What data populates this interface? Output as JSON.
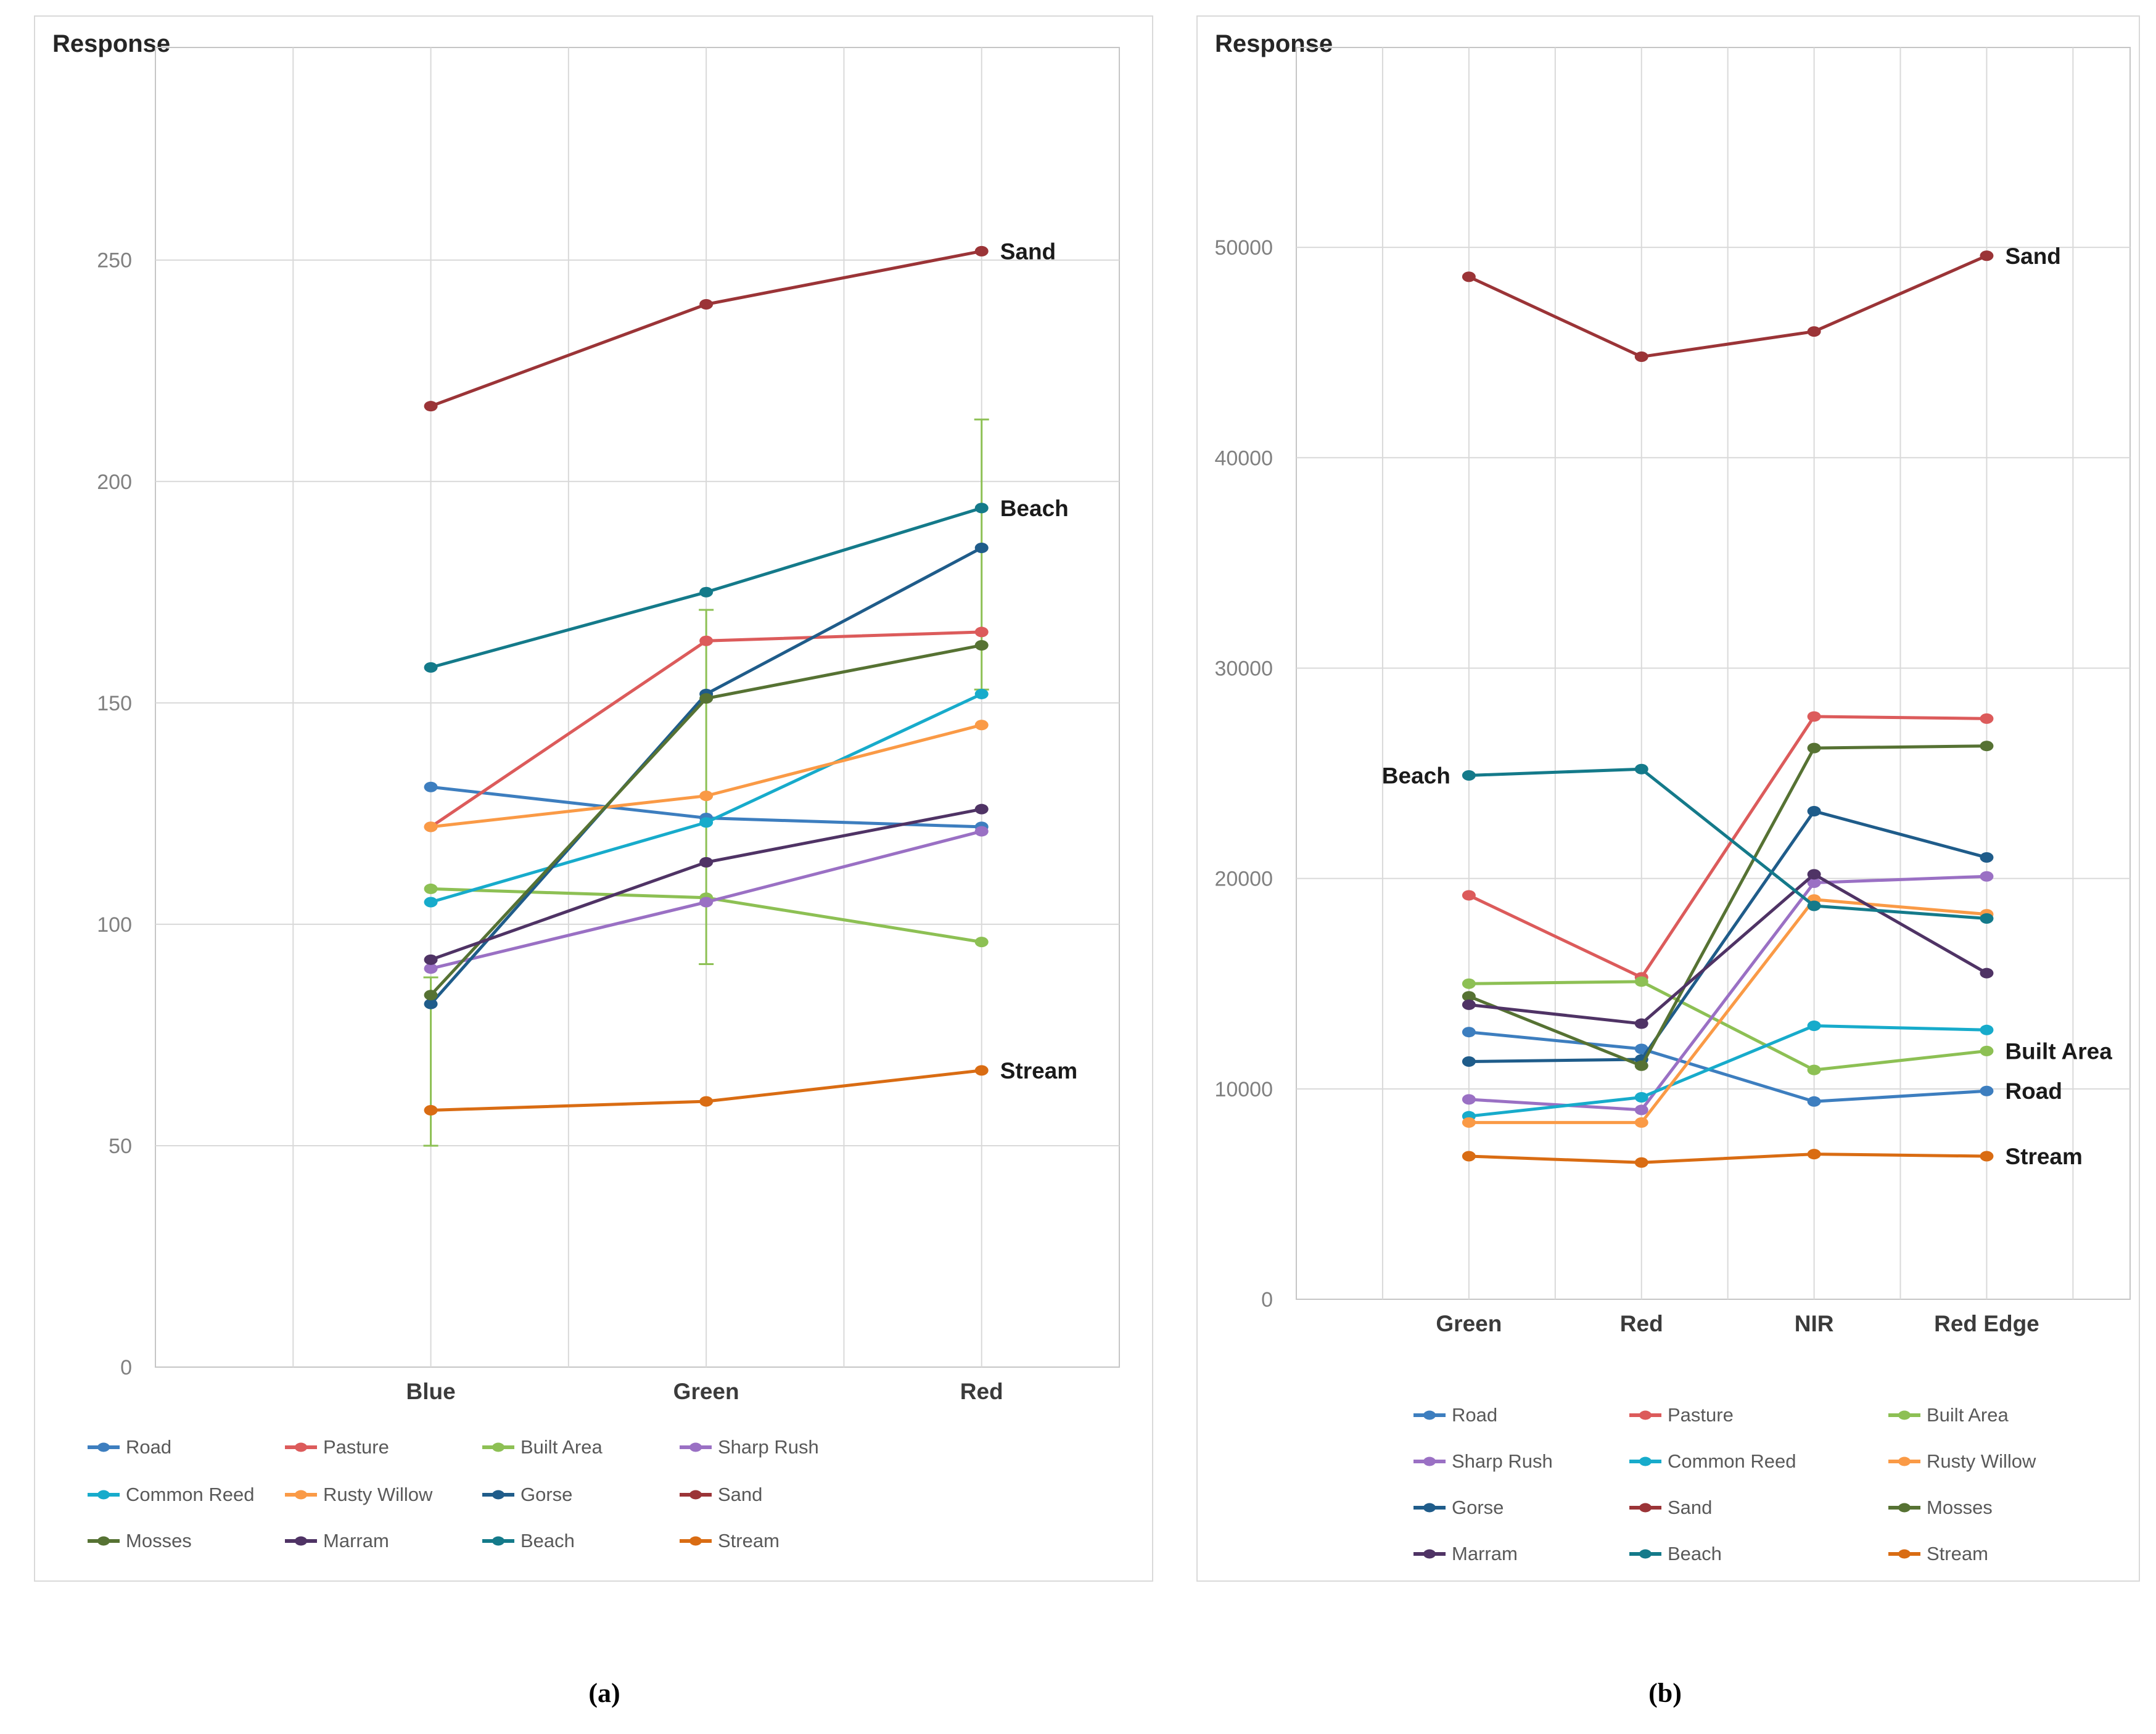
{
  "figure": {
    "captions": [
      "(a)",
      "(b)"
    ],
    "grid_color": "#d9d9d9",
    "plot_border_color": "#c6c6c6",
    "tick_label_color": "#808080",
    "axis_label_color": "#3b3b3b",
    "annotation_color": "#1a1a1a"
  },
  "chart_data": [
    {
      "id": "a",
      "type": "line",
      "title": "Response",
      "xlabel": "",
      "ylabel": "Response",
      "categories": [
        "Blue",
        "Green",
        "Red"
      ],
      "ylim": [
        0,
        298
      ],
      "yticks": [
        0,
        50,
        100,
        150,
        200,
        250
      ],
      "grid": true,
      "legend_position": "bottom",
      "series": [
        {
          "name": "Road",
          "color": "#3D7EBF",
          "values": [
            131,
            124,
            122
          ]
        },
        {
          "name": "Pasture",
          "color": "#DC5B5B",
          "values": [
            122,
            164,
            166
          ]
        },
        {
          "name": "Built Area",
          "color": "#8DC054",
          "values": [
            108,
            106,
            96
          ]
        },
        {
          "name": "Sharp Rush",
          "color": "#9A70C4",
          "values": [
            90,
            105,
            121
          ]
        },
        {
          "name": "Common Reed",
          "color": "#17ABCB",
          "values": [
            105,
            123,
            152
          ]
        },
        {
          "name": "Rusty Willow",
          "color": "#FA9A46",
          "values": [
            122,
            129,
            145
          ]
        },
        {
          "name": "Gorse",
          "color": "#1F5C8A",
          "values": [
            82,
            152,
            185
          ]
        },
        {
          "name": "Sand",
          "color": "#9B3437",
          "values": [
            217,
            240,
            252
          ]
        },
        {
          "name": "Mosses",
          "color": "#567233",
          "values": [
            84,
            151,
            163
          ]
        },
        {
          "name": "Marram",
          "color": "#4F3365",
          "values": [
            92,
            114,
            126
          ]
        },
        {
          "name": "Beach",
          "color": "#147A8A",
          "values": [
            158,
            175,
            194
          ]
        },
        {
          "name": "Stream",
          "color": "#D96C13",
          "values": [
            58,
            60,
            67
          ]
        }
      ],
      "error_bars": {
        "color": "#8DC054",
        "bars": [
          {
            "category_index": 0,
            "from": 50,
            "to": 88
          },
          {
            "category_index": 1,
            "from": 91,
            "to": 171
          },
          {
            "category_index": 2,
            "from": 153,
            "to": 214
          }
        ]
      },
      "annotations": [
        {
          "text": "Sand",
          "category_index": 2,
          "value": 252,
          "side": "right"
        },
        {
          "text": "Beach",
          "category_index": 2,
          "value": 194,
          "side": "right"
        },
        {
          "text": "Stream",
          "category_index": 2,
          "value": 67,
          "side": "right"
        }
      ],
      "legend_rows": [
        [
          "Road",
          "Pasture",
          "Built Area",
          "Sharp Rush"
        ],
        [
          "Common Reed",
          "Rusty Willow",
          "Gorse",
          "Sand"
        ],
        [
          "Mosses",
          "Marram",
          "Beach",
          "Stream"
        ]
      ]
    },
    {
      "id": "b",
      "type": "line",
      "title": "Response",
      "xlabel": "",
      "ylabel": "Response",
      "categories": [
        "Green",
        "Red",
        "NIR",
        "Red Edge"
      ],
      "ylim": [
        0,
        59500
      ],
      "yticks": [
        0,
        10000,
        20000,
        30000,
        40000,
        50000
      ],
      "grid": true,
      "legend_position": "bottom",
      "series": [
        {
          "name": "Road",
          "color": "#3D7EBF",
          "values": [
            12700,
            11900,
            9400,
            9900
          ]
        },
        {
          "name": "Pasture",
          "color": "#DC5B5B",
          "values": [
            19200,
            15300,
            27700,
            27600
          ]
        },
        {
          "name": "Built Area",
          "color": "#8DC054",
          "values": [
            15000,
            15100,
            10900,
            11800
          ]
        },
        {
          "name": "Sharp Rush",
          "color": "#9A70C4",
          "values": [
            9500,
            9000,
            19800,
            20100
          ]
        },
        {
          "name": "Common Reed",
          "color": "#17ABCB",
          "values": [
            8700,
            9600,
            13000,
            12800
          ]
        },
        {
          "name": "Rusty Willow",
          "color": "#FA9A46",
          "values": [
            8400,
            8400,
            19000,
            18300
          ]
        },
        {
          "name": "Gorse",
          "color": "#1F5C8A",
          "values": [
            11300,
            11400,
            23200,
            21000
          ]
        },
        {
          "name": "Sand",
          "color": "#9B3437",
          "values": [
            48600,
            44800,
            46000,
            49600
          ]
        },
        {
          "name": "Mosses",
          "color": "#567233",
          "values": [
            14400,
            11100,
            26200,
            26300
          ]
        },
        {
          "name": "Marram",
          "color": "#4F3365",
          "values": [
            14000,
            13100,
            20200,
            15500
          ]
        },
        {
          "name": "Beach",
          "color": "#147A8A",
          "values": [
            24900,
            25200,
            18700,
            18100
          ]
        },
        {
          "name": "Stream",
          "color": "#D96C13",
          "values": [
            6800,
            6500,
            6900,
            6800
          ]
        }
      ],
      "annotations": [
        {
          "text": "Sand",
          "category_index": 3,
          "value": 49600,
          "side": "right"
        },
        {
          "text": "Beach",
          "category_index": 0,
          "value": 24900,
          "side": "left"
        },
        {
          "text": "Built Area",
          "category_index": 3,
          "value": 11800,
          "side": "right"
        },
        {
          "text": "Road",
          "category_index": 3,
          "value": 9900,
          "side": "right"
        },
        {
          "text": "Stream",
          "category_index": 3,
          "value": 6800,
          "side": "right"
        }
      ],
      "legend_rows": [
        [
          "Road",
          "Pasture",
          "Built Area"
        ],
        [
          "Sharp Rush",
          "Common Reed",
          "Rusty Willow"
        ],
        [
          "Gorse",
          "Sand",
          "Mosses"
        ],
        [
          "Marram",
          "Beach",
          "Stream"
        ]
      ]
    }
  ]
}
